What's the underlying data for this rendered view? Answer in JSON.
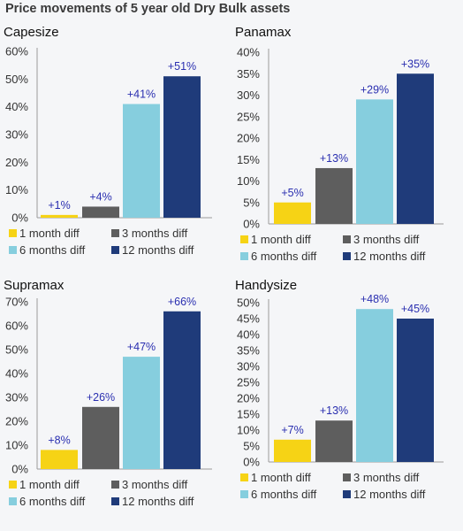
{
  "page": {
    "title": "Price movements of 5 year old Dry Bulk assets"
  },
  "colors": {
    "1 month diff": "#f6d315",
    "3 months diff": "#5e5e5e",
    "6 months diff": "#86cede",
    "12 months diff": "#1f3b7a",
    "data_label": "#2a2fb0"
  },
  "chart_data": [
    {
      "type": "bar",
      "title": "Capesize",
      "categories": [
        "1 month diff",
        "3 months diff",
        "6 months diff",
        "12 months diff"
      ],
      "values": [
        1,
        4,
        41,
        51
      ],
      "data_labels": [
        "+1%",
        "+4%",
        "+41%",
        "+51%"
      ],
      "ylim": [
        0,
        60
      ],
      "yticks": [
        "0%",
        "10%",
        "20%",
        "30%",
        "40%",
        "50%",
        "60%"
      ],
      "ytick_values": [
        0,
        10,
        20,
        30,
        40,
        50,
        60
      ],
      "legend": {
        "entries": [
          "1 month diff",
          "3 months diff",
          "6 months diff",
          "12 months diff"
        ],
        "placement": "bottom"
      }
    },
    {
      "type": "bar",
      "title": "Panamax",
      "categories": [
        "1 month diff",
        "3 months diff",
        "6 months diff",
        "12 months diff"
      ],
      "values": [
        5,
        13,
        29,
        35
      ],
      "data_labels": [
        "+5%",
        "+13%",
        "+29%",
        "+35%"
      ],
      "ylim": [
        0,
        40
      ],
      "yticks": [
        "0%",
        "5%",
        "10%",
        "15%",
        "20%",
        "25%",
        "30%",
        "35%",
        "40%"
      ],
      "ytick_values": [
        0,
        5,
        10,
        15,
        20,
        25,
        30,
        35,
        40
      ],
      "legend": {
        "entries": [
          "1 month diff",
          "3 months diff",
          "6 months diff",
          "12 months diff"
        ],
        "placement": "bottom"
      }
    },
    {
      "type": "bar",
      "title": "Supramax",
      "categories": [
        "1 month diff",
        "3 months diff",
        "6 months diff",
        "12 months diff"
      ],
      "values": [
        8,
        26,
        47,
        66
      ],
      "data_labels": [
        "+8%",
        "+26%",
        "+47%",
        "+66%"
      ],
      "ylim": [
        0,
        70
      ],
      "yticks": [
        "0%",
        "10%",
        "20%",
        "30%",
        "40%",
        "50%",
        "60%",
        "70%"
      ],
      "ytick_values": [
        0,
        10,
        20,
        30,
        40,
        50,
        60,
        70
      ],
      "legend": {
        "entries": [
          "1 month diff",
          "3 months diff",
          "6 months diff",
          "12 months diff"
        ],
        "placement": "bottom"
      }
    },
    {
      "type": "bar",
      "title": "Handysize",
      "categories": [
        "1 month diff",
        "3 months diff",
        "6 months diff",
        "12 months diff"
      ],
      "values": [
        7,
        13,
        48,
        45
      ],
      "data_labels": [
        "+7%",
        "+13%",
        "+48%",
        "+45%"
      ],
      "ylim": [
        0,
        50
      ],
      "yticks": [
        "0%",
        "5%",
        "10%",
        "15%",
        "20%",
        "25%",
        "30%",
        "35%",
        "40%",
        "45%",
        "50%"
      ],
      "ytick_values": [
        0,
        5,
        10,
        15,
        20,
        25,
        30,
        35,
        40,
        45,
        50
      ],
      "legend": {
        "entries": [
          "1 month diff",
          "3 months diff",
          "6 months diff",
          "12 months diff"
        ],
        "placement": "bottom"
      }
    }
  ]
}
